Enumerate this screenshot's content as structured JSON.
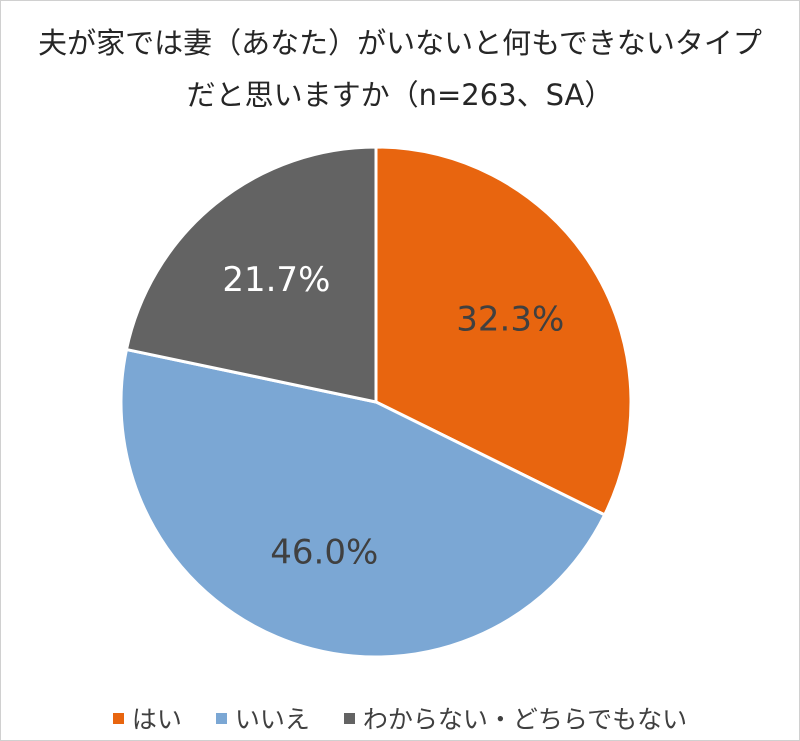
{
  "chart_data": {
    "type": "pie",
    "title": [
      "夫が家では妻（あなた）がいないと何もできないタイプ",
      "だと思いますか（n=263、SA）"
    ],
    "categories": [
      "はい",
      "いいえ",
      "わからない・どちらでもない"
    ],
    "values": [
      32.3,
      46.0,
      21.7
    ],
    "labels": [
      "32.3%",
      "46.0%",
      "21.7%"
    ],
    "colors": [
      "#E8650F",
      "#7BA7D4",
      "#636363"
    ],
    "label_colors": [
      "#404040",
      "#404040",
      "#ffffff"
    ],
    "start": "top",
    "direction": "clockwise",
    "legend_position": "bottom"
  }
}
